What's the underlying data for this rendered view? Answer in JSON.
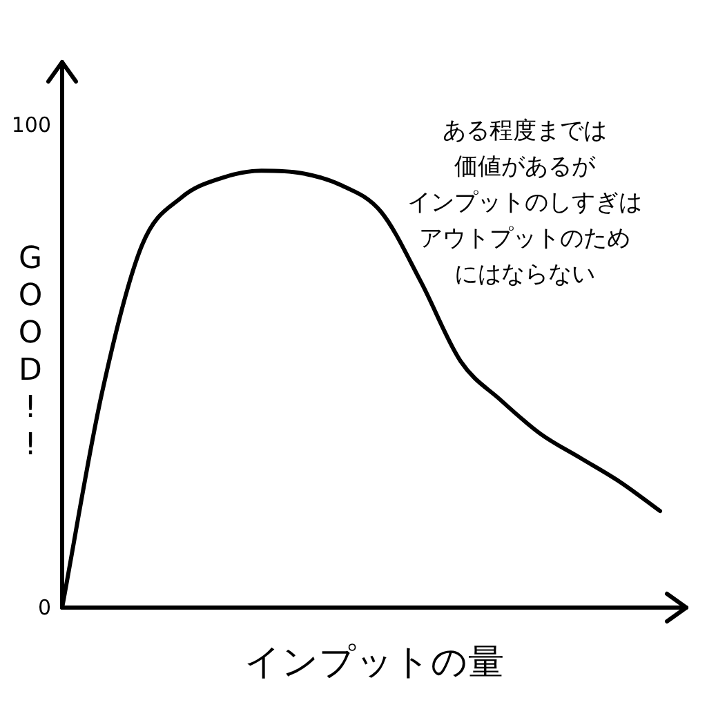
{
  "chart_data": {
    "type": "line",
    "xlabel": "インプットの量",
    "ylabel": "GOOD!!",
    "annotations": [
      "ある程度までは",
      "価値があるが",
      "インプットのしすぎは",
      "アウトプットのため",
      "にはならない"
    ],
    "categories": [
      null,
      null,
      null,
      null,
      null,
      null,
      null,
      null,
      null,
      null,
      null,
      null,
      null,
      null,
      null,
      null
    ],
    "values": [
      0,
      44.5,
      75,
      85,
      89,
      90.5,
      90,
      87.5,
      82,
      67.5,
      51,
      43,
      36,
      31,
      26,
      20
    ],
    "color": "#000000",
    "ylim": [
      0,
      113
    ],
    "yticks": [
      0,
      100
    ],
    "tick_labels": "y"
  }
}
